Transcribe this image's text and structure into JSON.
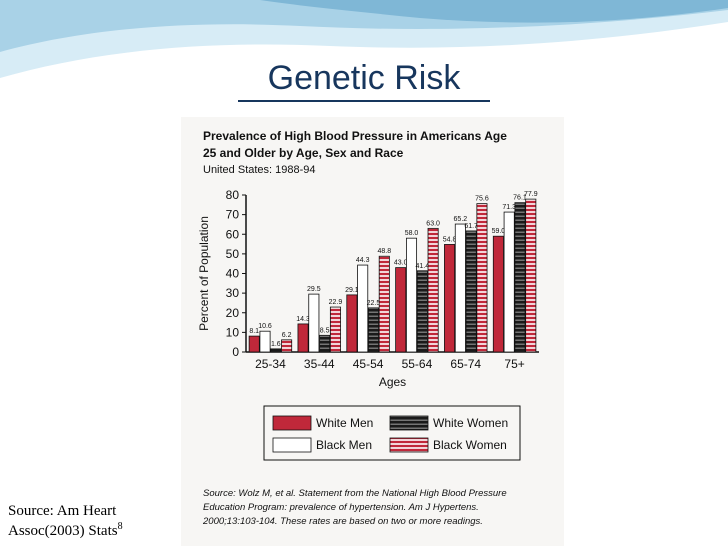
{
  "slide": {
    "title": "Genetic Risk",
    "source_line1": "Source: Am Heart",
    "source_line2": "Assoc(2003) Stats",
    "source_sup": "8"
  },
  "colors": {
    "title": "#17365d",
    "banner_light": "#cfe6f2",
    "banner_dark": "#7fb7d6",
    "white_men": "#c0283a",
    "black_women_stripe": "#c0283a"
  },
  "chart_data": {
    "type": "bar",
    "title_line1": "Prevalence of High Blood Pressure in Americans Age",
    "title_line2": "25 and Older by Age, Sex and Race",
    "subtitle": "United States: 1988-94",
    "xlabel": "Ages",
    "ylabel": "Percent of Population",
    "ylim": [
      0,
      80
    ],
    "yticks": [
      "0",
      "10",
      "20",
      "30",
      "40",
      "50",
      "60",
      "70",
      "80"
    ],
    "categories": [
      "25-34",
      "35-44",
      "45-54",
      "55-64",
      "65-74",
      "75+"
    ],
    "series": [
      {
        "name": "White Men",
        "values": [
          8.1,
          14.3,
          29.1,
          43.0,
          54.8,
          59.0
        ],
        "labels": [
          "8.1",
          "14.3",
          "29.1",
          "43.0",
          "54.8",
          "59.0"
        ]
      },
      {
        "name": "Black Men",
        "values": [
          10.6,
          29.5,
          44.3,
          58.0,
          65.2,
          71.3
        ],
        "labels": [
          "10.6",
          "29.5",
          "44.3",
          "58.0",
          "65.2",
          "71.3"
        ]
      },
      {
        "name": "White Women",
        "values": [
          1.6,
          8.5,
          22.5,
          41.4,
          61.7,
          76.1
        ],
        "labels": [
          "1.6",
          "8.5",
          "22.5",
          "41.4",
          "61.7",
          "76.1"
        ]
      },
      {
        "name": "Black Women",
        "values": [
          6.2,
          22.9,
          48.8,
          63.0,
          75.6,
          77.9
        ],
        "labels": [
          "6.2",
          "22.9",
          "48.8",
          "63.0",
          "75.6",
          "77.9"
        ]
      }
    ],
    "legend_placement": "bottom",
    "grid": false,
    "source_lines": [
      "Source: Wolz M, et al. Statement from the National High Blood Pressure",
      "Education Program: prevalence of hypertension. Am J Hypertens.",
      "2000;13:103-104. These rates are based on two or more readings."
    ]
  }
}
